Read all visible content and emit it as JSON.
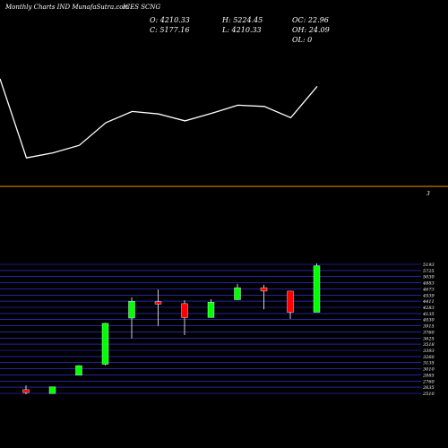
{
  "header": {
    "source": "Monthly Charts IND MunafaSutra.com",
    "symbol": "ICES SCNG"
  },
  "ohlc": {
    "open": "O: 4210.33",
    "high": "H: 5224.45",
    "oc": "OC: 22.96",
    "close": "C: 5177.16",
    "low": "L: 4210.33",
    "oh": "OH: 24.09",
    "ol": "OL: 0"
  },
  "lower_panel_label": "3",
  "colors": {
    "up": "#00ff00",
    "down": "#ff0000",
    "separator": "#ff8c00",
    "grid": "#3a3aff"
  },
  "chart_data": [
    {
      "type": "line",
      "title": "",
      "series": [
        {
          "values": [
            4600,
            3340,
            3420,
            3540,
            3900,
            4080,
            4040,
            3930,
            4050,
            4180,
            4160,
            3980,
            4480
          ]
        }
      ]
    },
    {
      "type": "candlestick",
      "ylabels": [
        "5193",
        "5725",
        "5030",
        "4883",
        "4673",
        "4539",
        "4411",
        "4283",
        "4135",
        "4030",
        "3915",
        "3760",
        "3625",
        "3518",
        "3393",
        "3260",
        "3135",
        "3010",
        "2885",
        "2760",
        "2635",
        "2510"
      ],
      "candles": [
        {
          "o": 2600,
          "h": 2690,
          "l": 2505,
          "c": 2540,
          "dir": "down"
        },
        {
          "o": 2520,
          "h": 2665,
          "l": 2520,
          "c": 2660,
          "dir": "up"
        },
        {
          "o": 2900,
          "h": 3110,
          "l": 2900,
          "c": 3100,
          "dir": "up"
        },
        {
          "o": 3130,
          "h": 3990,
          "l": 3105,
          "c": 3980,
          "dir": "up"
        },
        {
          "o": 4090,
          "h": 4520,
          "l": 3665,
          "c": 4440,
          "dir": "up"
        },
        {
          "o": 4430,
          "h": 4680,
          "l": 3925,
          "c": 4380,
          "dir": "down"
        },
        {
          "o": 4390,
          "h": 4460,
          "l": 3735,
          "c": 4100,
          "dir": "down"
        },
        {
          "o": 4100,
          "h": 4480,
          "l": 4100,
          "c": 4420,
          "dir": "up"
        },
        {
          "o": 4470,
          "h": 4800,
          "l": 4470,
          "c": 4720,
          "dir": "up"
        },
        {
          "o": 4720,
          "h": 4780,
          "l": 4270,
          "c": 4650,
          "dir": "down"
        },
        {
          "o": 4650,
          "h": 4650,
          "l": 4070,
          "c": 4210,
          "dir": "down"
        },
        {
          "o": 4210,
          "h": 5224,
          "l": 4210,
          "c": 5177,
          "dir": "up"
        }
      ]
    }
  ]
}
